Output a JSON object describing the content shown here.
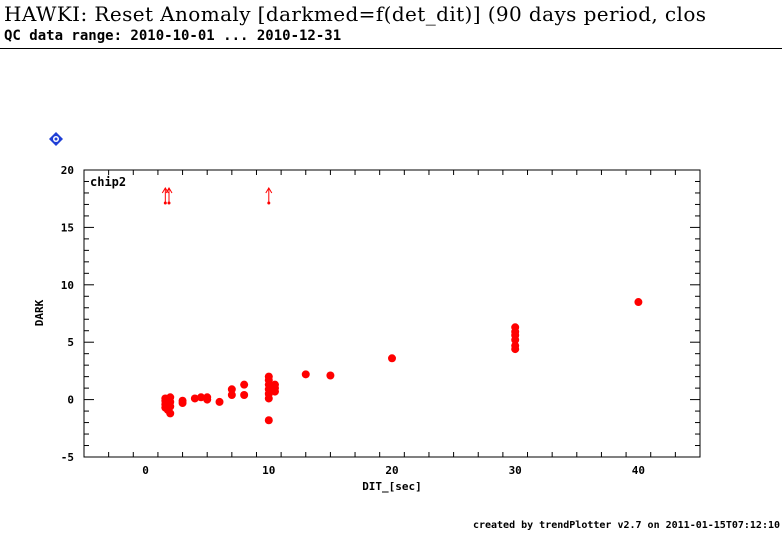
{
  "header": {
    "title": "HAWKI: Reset Anomaly [darkmed=f(det_dit)] (90 days period, clos",
    "subtitle": "QC data range: 2010-10-01 ... 2010-12-31"
  },
  "footer": {
    "credit": "created by trendPlotter v2.7 on 2011-01-15T07:12:10"
  },
  "colors": {
    "points": "#ff0000",
    "badge": "#1f3fd6",
    "axes": "#000000"
  },
  "icons": {
    "badge": "blue-diamond-icon"
  },
  "chart_data": {
    "type": "scatter",
    "panel_label": "chip2",
    "xlabel": "DIT_[sec]",
    "ylabel": "DARK",
    "xlim": [
      -5,
      45
    ],
    "ylim": [
      -5,
      20
    ],
    "xticks": [
      0,
      10,
      20,
      30,
      40
    ],
    "yticks": [
      -5,
      0,
      5,
      10,
      15,
      20
    ],
    "grid": false,
    "series": [
      {
        "color": "#ff0000",
        "points": [
          [
            1.6,
            -0.1
          ],
          [
            1.6,
            -0.4
          ],
          [
            1.6,
            -0.7
          ],
          [
            1.6,
            0.1
          ],
          [
            1.8,
            -0.9
          ],
          [
            1.8,
            -0.3
          ],
          [
            1.8,
            0.0
          ],
          [
            2.0,
            -1.2
          ],
          [
            2.0,
            -0.6
          ],
          [
            2.0,
            0.2
          ],
          [
            2.0,
            -0.2
          ],
          [
            3.0,
            -0.3
          ],
          [
            3.0,
            -0.1
          ],
          [
            4.0,
            0.1
          ],
          [
            4.5,
            0.2
          ],
          [
            5.0,
            0.0
          ],
          [
            5.0,
            0.2
          ],
          [
            6.0,
            -0.2
          ],
          [
            7.0,
            0.4
          ],
          [
            7.0,
            0.9
          ],
          [
            8.0,
            0.4
          ],
          [
            8.0,
            1.3
          ],
          [
            10.0,
            0.1
          ],
          [
            10.0,
            0.5
          ],
          [
            10.0,
            0.9
          ],
          [
            10.0,
            1.3
          ],
          [
            10.0,
            1.7
          ],
          [
            10.0,
            2.0
          ],
          [
            10.0,
            -1.8
          ],
          [
            10.5,
            0.7
          ],
          [
            10.5,
            1.0
          ],
          [
            10.5,
            1.3
          ],
          [
            13.0,
            2.2
          ],
          [
            15.0,
            2.1
          ],
          [
            20.0,
            3.6
          ],
          [
            30.0,
            4.4
          ],
          [
            30.0,
            4.7
          ],
          [
            30.0,
            5.2
          ],
          [
            30.0,
            5.6
          ],
          [
            30.0,
            5.9
          ],
          [
            30.0,
            6.3
          ],
          [
            40.0,
            8.5
          ]
        ]
      }
    ],
    "offscale_markers": [
      {
        "x": 1.6,
        "direction": "up"
      },
      {
        "x": 1.9,
        "direction": "up"
      },
      {
        "x": 10.0,
        "direction": "up"
      }
    ]
  }
}
